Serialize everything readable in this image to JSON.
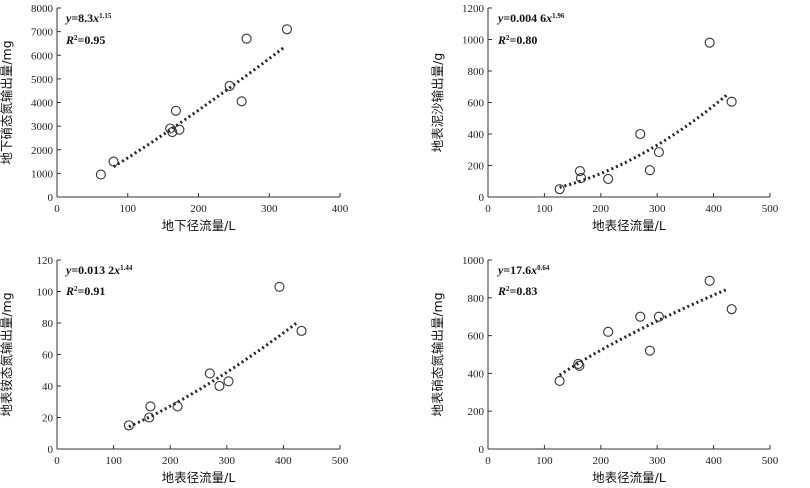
{
  "chart_data": [
    {
      "type": "scatter",
      "x": [
        62,
        80,
        163,
        168,
        173,
        244,
        261,
        268,
        325,
        160
      ],
      "y": [
        950,
        1500,
        2750,
        3650,
        2850,
        4700,
        4050,
        6700,
        7100,
        2900
      ],
      "trend": {
        "model": "power",
        "a": 8.3,
        "b": 1.15,
        "x_range": [
          80,
          320
        ]
      },
      "equation": {
        "lhs": "y=8.3",
        "var": "x",
        "exp": "1.15"
      },
      "r2": {
        "label": "R",
        "sup": "2",
        "value": "=0.95"
      },
      "xlabel": "地下径流量/L",
      "ylabel": "地下硝态氮输出量/mg",
      "xlim": [
        0,
        400
      ],
      "ylim": [
        0,
        8000
      ],
      "xticks": [
        "0",
        "100",
        "200",
        "300",
        "400"
      ],
      "yticks": [
        "0",
        "1000",
        "2000",
        "3000",
        "4000",
        "5000",
        "6000",
        "7000",
        "8000"
      ]
    },
    {
      "type": "scatter",
      "x": [
        127,
        163,
        165,
        213,
        270,
        287,
        303,
        393,
        432
      ],
      "y": [
        50,
        165,
        120,
        115,
        400,
        170,
        285,
        980,
        605
      ],
      "trend": {
        "model": "power",
        "a": 0.0046,
        "b": 1.96,
        "x_range": [
          127,
          425
        ]
      },
      "equation": {
        "lhs": "y=0.004 6",
        "var": "x",
        "exp": "1.96"
      },
      "r2": {
        "label": "R",
        "sup": "2",
        "value": "=0.80"
      },
      "xlabel": "地表径流量/L",
      "ylabel": "地表泥沙输出量/g",
      "xlim": [
        0,
        500
      ],
      "ylim": [
        0,
        1200
      ],
      "xticks": [
        "0",
        "100",
        "200",
        "300",
        "400",
        "500"
      ],
      "yticks": [
        "0",
        "200",
        "400",
        "600",
        "800",
        "1000",
        "1200"
      ]
    },
    {
      "type": "scatter",
      "x": [
        127,
        163,
        165,
        213,
        270,
        287,
        303,
        393,
        432
      ],
      "y": [
        15,
        20,
        27,
        27,
        48,
        40,
        43,
        103,
        75
      ],
      "trend": {
        "model": "power",
        "a": 0.0132,
        "b": 1.44,
        "x_range": [
          127,
          425
        ]
      },
      "equation": {
        "lhs": "y=0.013 2",
        "var": "x",
        "exp": "1.44"
      },
      "r2": {
        "label": "R",
        "sup": "2",
        "value": "=0.91"
      },
      "xlabel": "地表径流量/L",
      "ylabel": "地表铵态氮输出量/mg",
      "xlim": [
        0,
        500
      ],
      "ylim": [
        0,
        120
      ],
      "xticks": [
        "0",
        "100",
        "200",
        "300",
        "400",
        "500"
      ],
      "yticks": [
        "0",
        "20",
        "40",
        "60",
        "80",
        "100",
        "120"
      ]
    },
    {
      "type": "scatter",
      "x": [
        127,
        160,
        162,
        213,
        270,
        287,
        303,
        393,
        432
      ],
      "y": [
        360,
        450,
        440,
        620,
        700,
        520,
        700,
        890,
        740
      ],
      "trend": {
        "model": "power",
        "a": 17.6,
        "b": 0.64,
        "x_range": [
          127,
          425
        ]
      },
      "equation": {
        "lhs": "y=17.6",
        "var": "x",
        "exp": "0.64"
      },
      "r2": {
        "label": "R",
        "sup": "2",
        "value": "=0.83"
      },
      "xlabel": "地表径流量/L",
      "ylabel": "地表硝态氮输出量/mg",
      "xlim": [
        0,
        500
      ],
      "ylim": [
        0,
        1000
      ],
      "xticks": [
        "0",
        "100",
        "200",
        "300",
        "400",
        "500"
      ],
      "yticks": [
        "0",
        "200",
        "400",
        "600",
        "800",
        "1000"
      ]
    }
  ]
}
